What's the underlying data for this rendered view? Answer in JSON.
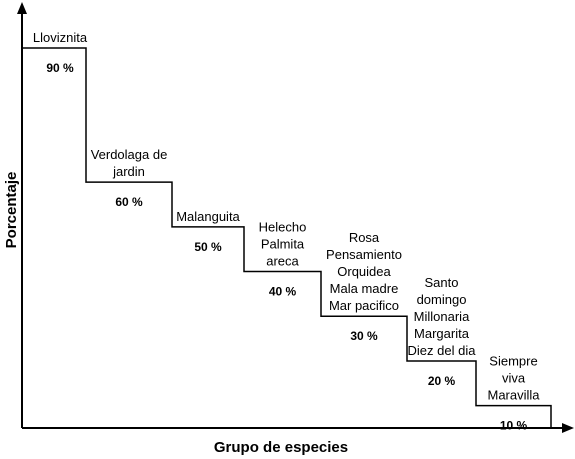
{
  "chart_data": {
    "type": "line",
    "title": "",
    "xlabel": "Grupo de especies",
    "ylabel": "Porcentaje",
    "ylim": [
      0,
      100
    ],
    "grid": false,
    "legend": "none",
    "steps": [
      {
        "value": 90,
        "value_label": "90 %",
        "species": [
          "Lloviznita"
        ]
      },
      {
        "value": 60,
        "value_label": "60 %",
        "species": [
          "Verdolaga de",
          "jardin"
        ]
      },
      {
        "value": 50,
        "value_label": "50 %",
        "species": [
          "Malanguita"
        ]
      },
      {
        "value": 40,
        "value_label": "40 %",
        "species": [
          "Helecho",
          "Palmita",
          "areca"
        ]
      },
      {
        "value": 30,
        "value_label": "30 %",
        "species": [
          "Rosa",
          "Pensamiento",
          "Orquidea",
          "Mala madre",
          "Mar pacifico"
        ]
      },
      {
        "value": 20,
        "value_label": "20 %",
        "species": [
          "Santo",
          "domingo",
          "Millonaria",
          "Margarita",
          "Diez del dia"
        ]
      },
      {
        "value": 10,
        "value_label": "10 %",
        "species": [
          "Siempre",
          "viva",
          "Maravilla"
        ]
      }
    ],
    "line_color": "#000000"
  }
}
